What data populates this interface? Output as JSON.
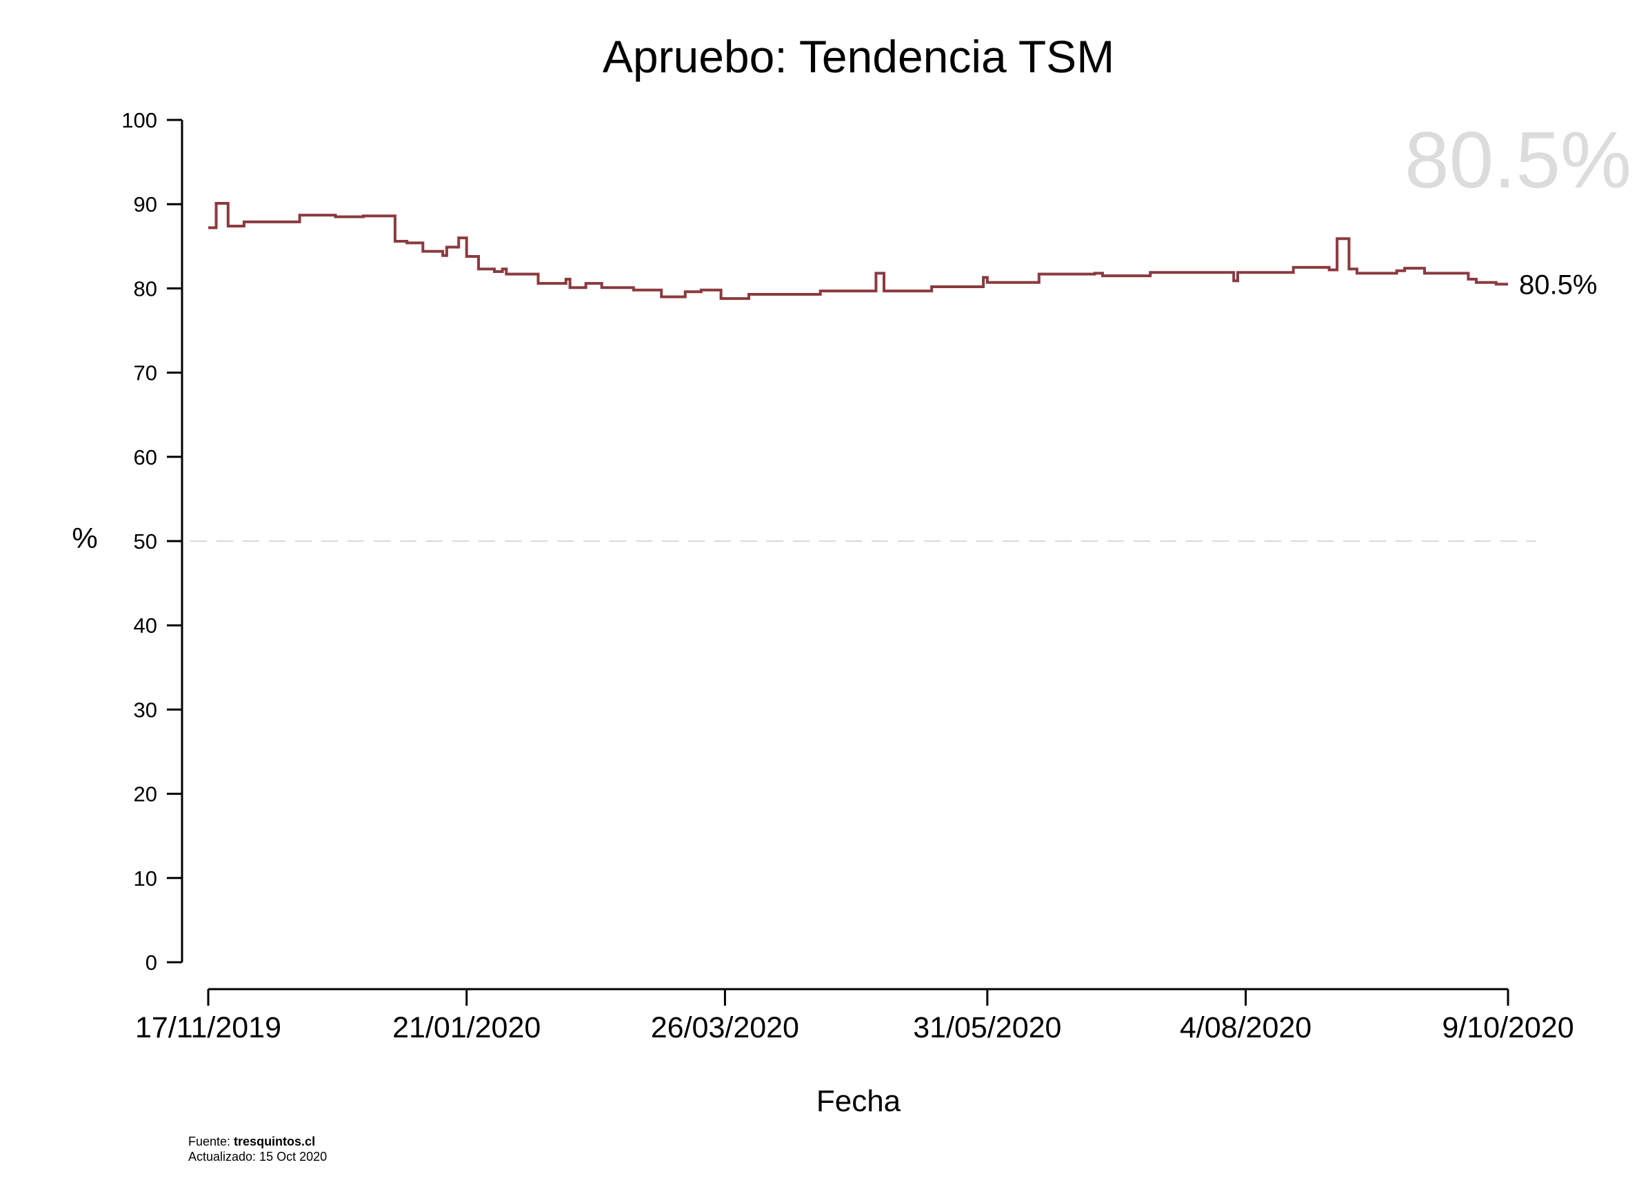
{
  "chart_data": {
    "type": "line",
    "title": "Apruebo: Tendencia TSM",
    "xlabel": "Fecha",
    "ylabel": "%",
    "ylim": [
      0,
      100
    ],
    "yticks": [
      0,
      10,
      20,
      30,
      40,
      50,
      60,
      70,
      80,
      90,
      100
    ],
    "xlim": [
      "2019-11-17",
      "2020-10-09"
    ],
    "xticks": [
      {
        "date": "2019-11-17",
        "label": "17/11/2019"
      },
      {
        "date": "2020-01-21",
        "label": "21/01/2020"
      },
      {
        "date": "2020-03-26",
        "label": "26/03/2020"
      },
      {
        "date": "2020-05-31",
        "label": "31/05/2020"
      },
      {
        "date": "2020-08-04",
        "label": "4/08/2020"
      },
      {
        "date": "2020-10-09",
        "label": "9/10/2020"
      }
    ],
    "reference_line": {
      "y": 50,
      "style": "dashed"
    },
    "series": [
      {
        "color": "#8b3a3f",
        "step": true,
        "points": [
          [
            "2019-11-17",
            87.2
          ],
          [
            "2019-11-19",
            90.1
          ],
          [
            "2019-11-22",
            87.4
          ],
          [
            "2019-11-26",
            87.9
          ],
          [
            "2019-12-10",
            88.7
          ],
          [
            "2019-12-19",
            88.5
          ],
          [
            "2019-12-26",
            88.6
          ],
          [
            "2020-01-03",
            85.6
          ],
          [
            "2020-01-06",
            85.4
          ],
          [
            "2020-01-10",
            84.4
          ],
          [
            "2020-01-15",
            83.9
          ],
          [
            "2020-01-16",
            84.9
          ],
          [
            "2020-01-19",
            86.0
          ],
          [
            "2020-01-21",
            83.8
          ],
          [
            "2020-01-24",
            82.3
          ],
          [
            "2020-01-28",
            82.0
          ],
          [
            "2020-01-30",
            82.3
          ],
          [
            "2020-01-31",
            81.7
          ],
          [
            "2020-02-08",
            80.6
          ],
          [
            "2020-02-15",
            81.1
          ],
          [
            "2020-02-16",
            80.1
          ],
          [
            "2020-02-20",
            80.6
          ],
          [
            "2020-02-24",
            80.1
          ],
          [
            "2020-03-03",
            79.8
          ],
          [
            "2020-03-10",
            79.0
          ],
          [
            "2020-03-16",
            79.6
          ],
          [
            "2020-03-20",
            79.8
          ],
          [
            "2020-03-25",
            78.8
          ],
          [
            "2020-04-01",
            79.3
          ],
          [
            "2020-04-19",
            79.7
          ],
          [
            "2020-05-03",
            81.8
          ],
          [
            "2020-05-05",
            79.7
          ],
          [
            "2020-05-17",
            80.2
          ],
          [
            "2020-05-30",
            81.3
          ],
          [
            "2020-05-31",
            80.7
          ],
          [
            "2020-06-13",
            81.7
          ],
          [
            "2020-06-27",
            81.8
          ],
          [
            "2020-06-29",
            81.5
          ],
          [
            "2020-07-11",
            81.9
          ],
          [
            "2020-08-01",
            80.9
          ],
          [
            "2020-08-02",
            81.9
          ],
          [
            "2020-08-16",
            82.5
          ],
          [
            "2020-08-25",
            82.2
          ],
          [
            "2020-08-27",
            85.9
          ],
          [
            "2020-08-30",
            82.3
          ],
          [
            "2020-09-01",
            81.8
          ],
          [
            "2020-09-11",
            82.1
          ],
          [
            "2020-09-13",
            82.4
          ],
          [
            "2020-09-18",
            81.8
          ],
          [
            "2020-09-29",
            81.1
          ],
          [
            "2020-10-01",
            80.7
          ],
          [
            "2020-10-06",
            80.5
          ],
          [
            "2020-10-09",
            80.5
          ]
        ]
      }
    ],
    "end_label": "80.5%",
    "big_label": "80.5%"
  },
  "footer": {
    "source_prefix": "Fuente: ",
    "source_name": "tresquintos.cl",
    "updated": "Actualizado: 15 Oct 2020"
  },
  "colors": {
    "line": "#8b3a3f",
    "big_label": "#dcdcdc",
    "reference_line": "#d8d8d8",
    "axis": "#000000"
  }
}
